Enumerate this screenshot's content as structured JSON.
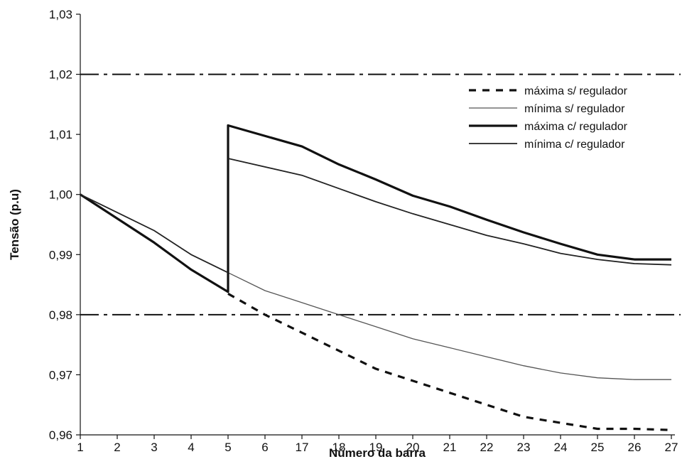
{
  "chart_data": {
    "type": "line",
    "title": "",
    "xlabel": "Número da barra",
    "ylabel": "Tensão (p.u)",
    "ylim": [
      0.96,
      1.03
    ],
    "yticks": [
      "0,96",
      "0,97",
      "0,98",
      "0,99",
      "1,00",
      "1,01",
      "1,02",
      "1,03"
    ],
    "grid": false,
    "legend_position": "top-right",
    "categories": [
      "1",
      "2",
      "3",
      "4",
      "5",
      "6",
      "17",
      "18",
      "19",
      "20",
      "21",
      "22",
      "23",
      "24",
      "25",
      "26",
      "27"
    ],
    "reference_lines": [
      {
        "value": 1.02,
        "style": "dash-dot"
      },
      {
        "value": 0.98,
        "style": "dash-dot"
      }
    ],
    "series": [
      {
        "name": "máxima s/ regulador",
        "style": "dashed-thick",
        "values": [
          1.0,
          0.996,
          0.992,
          0.9875,
          0.9835,
          0.98,
          0.977,
          0.974,
          0.971,
          0.969,
          0.967,
          0.965,
          0.963,
          0.962,
          0.961,
          0.961,
          0.9608
        ]
      },
      {
        "name": "mínima s/ regulador",
        "style": "thin-gray",
        "values": [
          1.0,
          0.997,
          0.994,
          0.99,
          0.987,
          0.984,
          0.982,
          0.98,
          0.978,
          0.976,
          0.9745,
          0.973,
          0.9715,
          0.9703,
          0.9695,
          0.9692,
          0.9692
        ]
      },
      {
        "name": "máxima c/ regulador",
        "style": "solid-thick",
        "segments": [
          [
            0,
            4
          ],
          [
            4,
            16
          ]
        ],
        "values": [
          1.0,
          0.996,
          0.992,
          0.9875,
          0.9838,
          1.0115,
          1.008,
          1.005,
          1.0025,
          0.9998,
          0.998,
          0.9958,
          0.9937,
          0.9918,
          0.99,
          0.9892,
          0.9892
        ]
      },
      {
        "name": "mínima c/ regulador",
        "style": "solid-medium",
        "values": [
          1.0,
          0.997,
          0.994,
          0.99,
          0.987,
          1.006,
          1.0032,
          1.001,
          0.9988,
          0.9968,
          0.995,
          0.9932,
          0.9918,
          0.9902,
          0.9892,
          0.9885,
          0.9883
        ]
      }
    ]
  }
}
